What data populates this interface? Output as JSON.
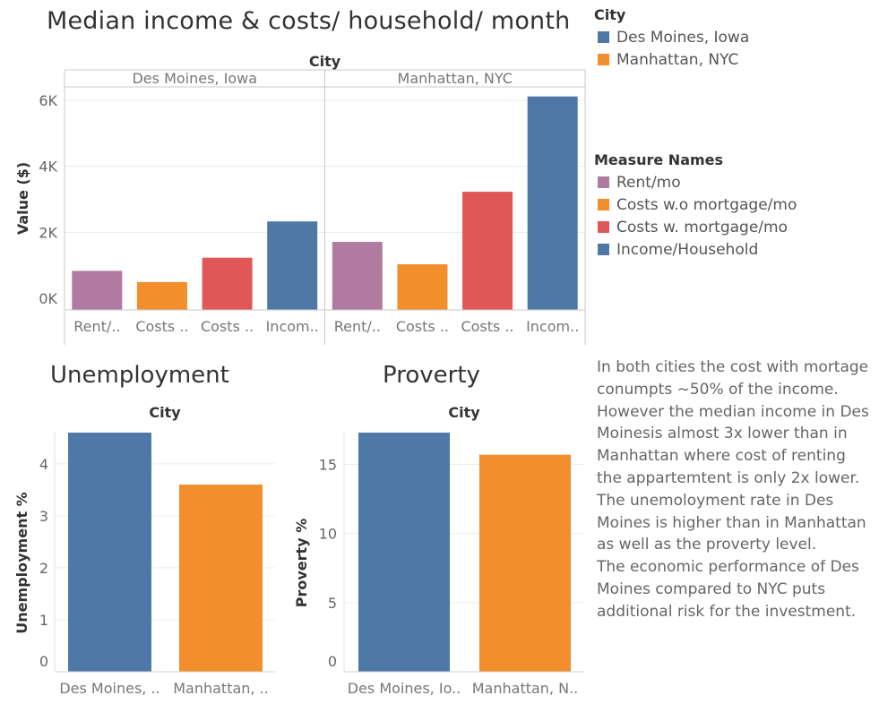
{
  "page_title": "Median income & costs/ household/ month",
  "legend_city": {
    "title": "City",
    "items": [
      {
        "label": "Des Moines, Iowa",
        "color": "#4e79a7"
      },
      {
        "label": "Manhattan, NYC",
        "color": "#f28e2b"
      }
    ]
  },
  "legend_measures": {
    "title": "Measure Names",
    "items": [
      {
        "label": "Rent/mo",
        "color": "#b07aa1"
      },
      {
        "label": "Costs w.o mortgage/mo",
        "color": "#f28e2b"
      },
      {
        "label": "Costs w. mortgage/mo",
        "color": "#e15759"
      },
      {
        "label": "Income/Household",
        "color": "#4e79a7"
      }
    ]
  },
  "note_lines": [
    "In both cities the cost with mortage",
    "conumpts ~50% of the income.",
    "However the median income in Des",
    "Moinesis almost 3x lower than in",
    "Manhattan where cost of renting",
    "the appartemtent is only 2x lower.",
    "The unemoloyment rate in Des",
    "Moines is higher than in Manhattan",
    "as well as the proverty level.",
    "The economic performance of Des",
    "Moines compared to NYC puts",
    "additional risk for the investment."
  ],
  "chart_data": [
    {
      "type": "bar",
      "title": "Median income & costs/ household/ month",
      "column_header": "City",
      "panels": [
        "Des Moines, Iowa",
        "Manhattan, NYC"
      ],
      "categories": [
        "Rent/mo",
        "Costs w.o mortgage/mo",
        "Costs w. mortgage/mo",
        "Income/Household"
      ],
      "category_tick_labels": [
        "Rent/..",
        "Costs ..",
        "Costs ..",
        "Incom.."
      ],
      "colors": [
        "#b07aa1",
        "#f28e2b",
        "#e15759",
        "#4e79a7"
      ],
      "series": [
        {
          "name": "Des Moines, Iowa",
          "values": [
            830,
            490,
            1230,
            2330
          ]
        },
        {
          "name": "Manhattan, NYC",
          "values": [
            1710,
            1030,
            3230,
            6120
          ]
        }
      ],
      "ylabel": "Value ($)",
      "yticks": [
        0,
        2000,
        4000,
        6000
      ],
      "ytick_labels": [
        "0K",
        "2K",
        "4K",
        "6K"
      ],
      "ylim": [
        0,
        6600
      ],
      "grid": true
    },
    {
      "type": "bar",
      "title": "Unemployment",
      "column_header": "City",
      "categories": [
        "Des Moines, Iowa",
        "Manhattan, NYC"
      ],
      "category_tick_labels": [
        "Des Moines, ..",
        "Manhattan, .."
      ],
      "colors": [
        "#4e79a7",
        "#f28e2b"
      ],
      "values": [
        4.6,
        3.6
      ],
      "ylabel": "Unemployment %",
      "yticks": [
        0,
        1,
        2,
        3,
        4
      ],
      "ylim": [
        0,
        4.6
      ],
      "grid": true
    },
    {
      "type": "bar",
      "title": "Proverty",
      "column_header": "City",
      "categories": [
        "Des Moines, Iowa",
        "Manhattan, NYC"
      ],
      "category_tick_labels": [
        "Des Moines, Io..",
        "Manhattan, N.."
      ],
      "colors": [
        "#4e79a7",
        "#f28e2b"
      ],
      "values": [
        17.3,
        15.7
      ],
      "ylabel": "Proverty %",
      "yticks": [
        0,
        5,
        10,
        15
      ],
      "ylim": [
        0,
        17.3
      ],
      "grid": true
    }
  ]
}
